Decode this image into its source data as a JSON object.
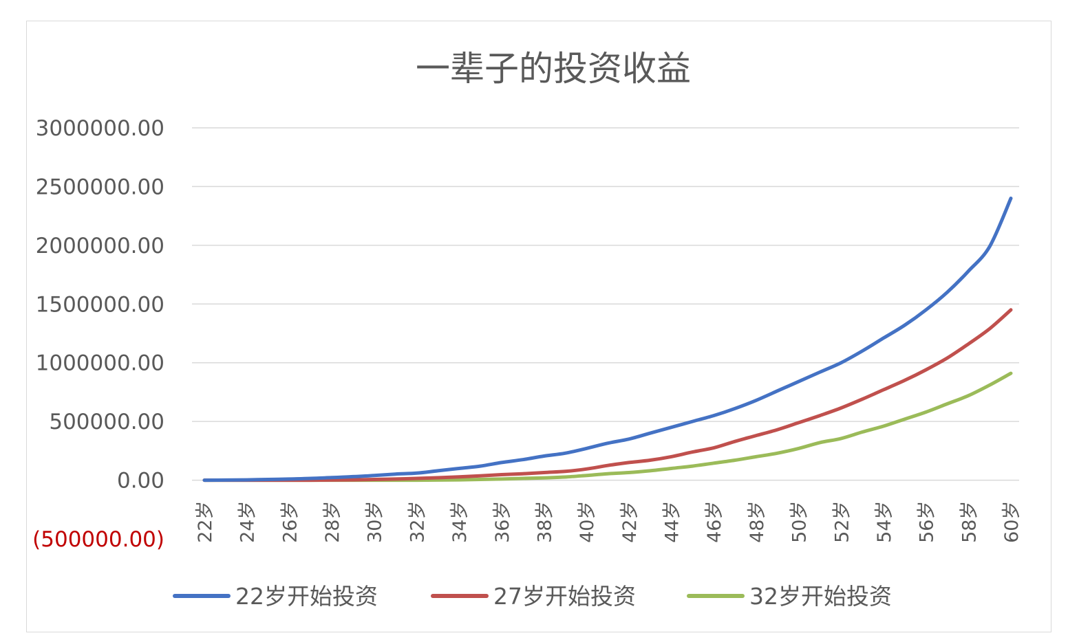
{
  "chart_data": {
    "type": "line",
    "title": "一辈子的投资收益",
    "xlabel": "",
    "ylabel": "",
    "ylim": [
      -500000,
      3000000
    ],
    "y_ticks": [
      3000000,
      2500000,
      2000000,
      1500000,
      1000000,
      500000,
      0,
      -500000
    ],
    "y_tick_labels": [
      "3000000.00",
      "2500000.00",
      "2000000.00",
      "1500000.00",
      "1000000.00",
      "500000.00",
      "0.00",
      "(500000.00)"
    ],
    "negative_tick_color": "#c00000",
    "x": [
      22,
      23,
      24,
      25,
      26,
      27,
      28,
      29,
      30,
      31,
      32,
      33,
      34,
      35,
      36,
      37,
      38,
      39,
      40,
      41,
      42,
      43,
      44,
      45,
      46,
      47,
      48,
      49,
      50,
      51,
      52,
      53,
      54,
      55,
      56,
      57,
      58,
      59,
      60
    ],
    "x_tick_labels": [
      "22岁",
      "24岁",
      "26岁",
      "28岁",
      "30岁",
      "32岁",
      "34岁",
      "36岁",
      "38岁",
      "40岁",
      "42岁",
      "44岁",
      "46岁",
      "48岁",
      "50岁",
      "52岁",
      "54岁",
      "56岁",
      "58岁",
      "60岁"
    ],
    "grid": true,
    "legend_position": "bottom",
    "series": [
      {
        "name": "22岁开始投资",
        "color": "#4472c4",
        "values": [
          0,
          1000,
          3000,
          6000,
          10000,
          15000,
          22000,
          30000,
          40000,
          52000,
          60000,
          80000,
          100000,
          120000,
          150000,
          175000,
          205000,
          230000,
          270000,
          315000,
          350000,
          400000,
          450000,
          500000,
          550000,
          610000,
          680000,
          760000,
          840000,
          920000,
          1000000,
          1100000,
          1210000,
          1320000,
          1450000,
          1600000,
          1780000,
          1990000,
          2400000
        ]
      },
      {
        "name": "27岁开始投资",
        "color": "#c0504d",
        "values": [
          0,
          0,
          0,
          0,
          0,
          0,
          1000,
          3000,
          6000,
          10000,
          15000,
          21000,
          28000,
          37000,
          47000,
          55000,
          65000,
          75000,
          95000,
          125000,
          150000,
          170000,
          200000,
          240000,
          275000,
          330000,
          380000,
          430000,
          490000,
          550000,
          615000,
          690000,
          770000,
          850000,
          940000,
          1040000,
          1160000,
          1290000,
          1450000
        ]
      },
      {
        "name": "32岁开始投资",
        "color": "#9bbb59",
        "values": [
          0,
          0,
          0,
          0,
          0,
          0,
          0,
          0,
          0,
          0,
          0,
          1000,
          3000,
          6000,
          10000,
          15000,
          20000,
          27000,
          40000,
          55000,
          65000,
          80000,
          100000,
          120000,
          145000,
          170000,
          200000,
          230000,
          270000,
          320000,
          355000,
          410000,
          460000,
          520000,
          580000,
          650000,
          720000,
          810000,
          910000
        ]
      }
    ]
  }
}
